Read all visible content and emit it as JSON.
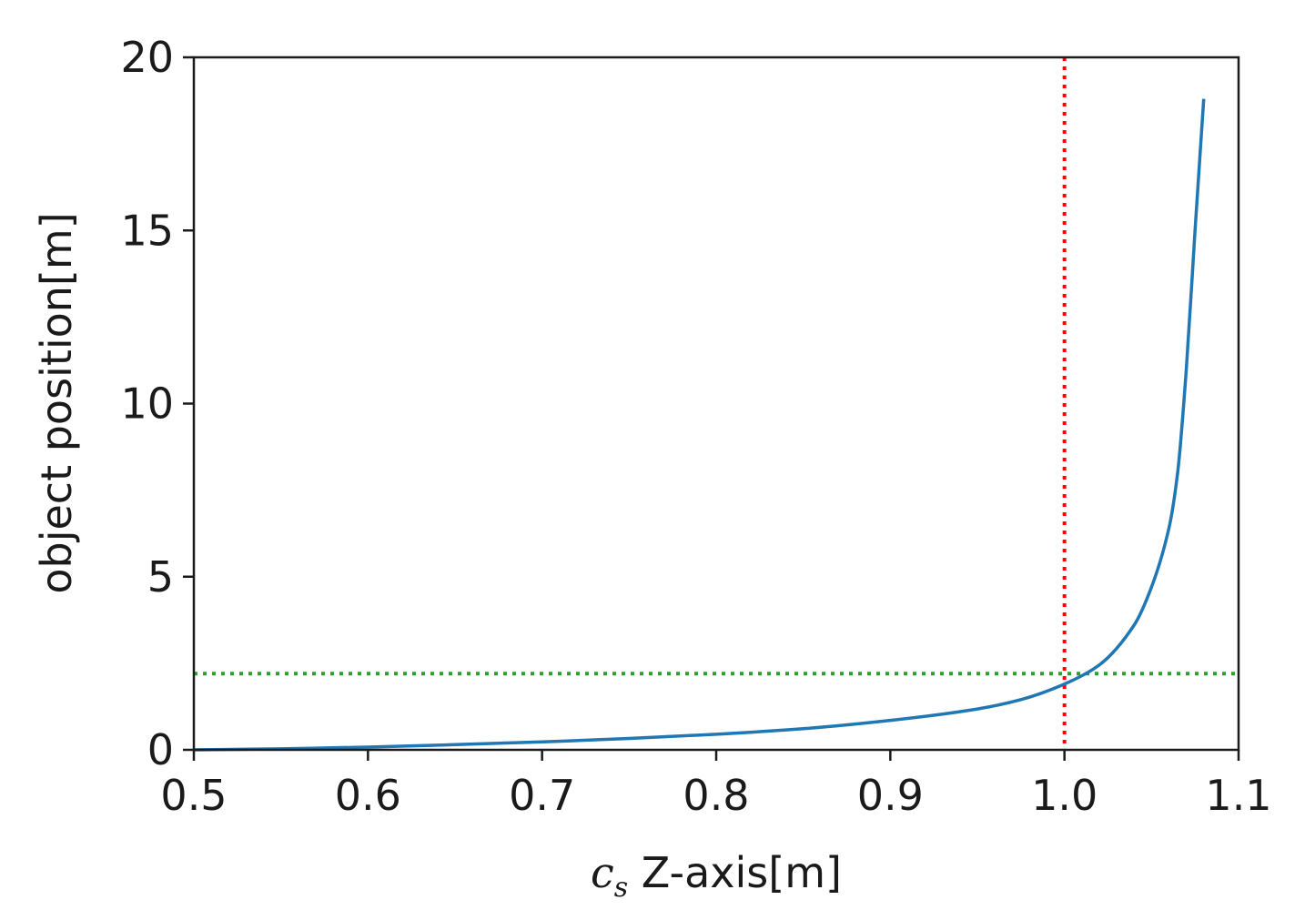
{
  "chart_data": {
    "type": "line",
    "title": "",
    "xlabel": {
      "var": "c",
      "sub": "s",
      "rest": " Z-axis[m]"
    },
    "ylabel": "object position[m]",
    "xlim": [
      0.5,
      1.1
    ],
    "ylim": [
      0,
      20
    ],
    "xticks": [
      "0.5",
      "0.6",
      "0.7",
      "0.8",
      "0.9",
      "1.0",
      "1.1"
    ],
    "yticks": [
      "0",
      "5",
      "10",
      "15",
      "20"
    ],
    "grid": false,
    "series": [
      {
        "color": "#1f77b4",
        "x": [
          0.5,
          0.55,
          0.6,
          0.65,
          0.7,
          0.75,
          0.8,
          0.85,
          0.9,
          0.95,
          0.975,
          1.0,
          1.02,
          1.04,
          1.05,
          1.06,
          1.065,
          1.07,
          1.075,
          1.08
        ],
        "y": [
          0.0,
          0.03,
          0.08,
          0.15,
          0.23,
          0.33,
          0.45,
          0.61,
          0.85,
          1.18,
          1.45,
          1.9,
          2.45,
          3.6,
          4.7,
          6.4,
          8.0,
          11.0,
          15.0,
          18.8
        ]
      }
    ],
    "reference_lines": [
      {
        "orientation": "vertical",
        "value": 1.0,
        "color": "#ff0000",
        "style": "dotted"
      },
      {
        "orientation": "horizontal",
        "value": 2.2,
        "color": "#2ca02c",
        "style": "dotted"
      }
    ]
  }
}
